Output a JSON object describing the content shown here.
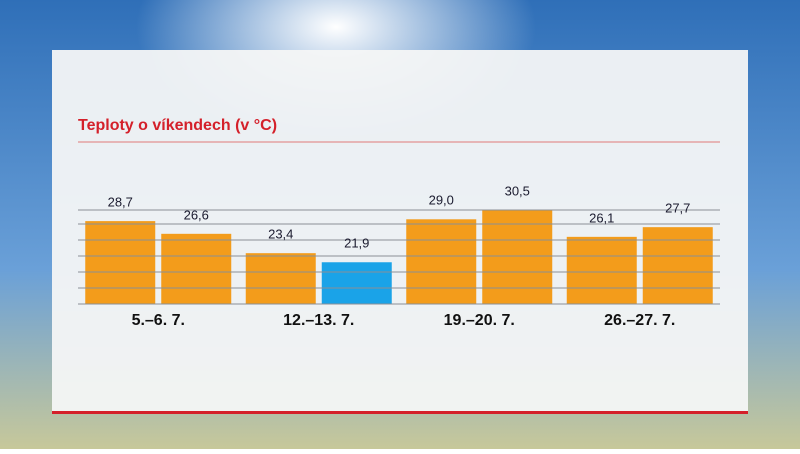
{
  "chart_data": {
    "type": "bar",
    "title": "Teploty o víkendech (v °C)",
    "categories": [
      "5.–6. 7.",
      "12.–13. 7.",
      "19.–20. 7.",
      "26.–27. 7."
    ],
    "series": [
      {
        "values": [
          28.7,
          23.4,
          29.0,
          26.1
        ],
        "value_labels": [
          "28,7",
          "23,4",
          "29,0",
          "26,1"
        ],
        "colors": [
          "#f39c1b",
          "#f39c1b",
          "#f39c1b",
          "#f39c1b"
        ]
      },
      {
        "values": [
          26.6,
          21.9,
          30.5,
          27.7
        ],
        "value_labels": [
          "26,6",
          "21,9",
          "30,5",
          "27,7"
        ],
        "colors": [
          "#f39c1b",
          "#1aa3e8",
          "#f39c1b",
          "#f39c1b"
        ]
      }
    ],
    "ylim": [
      15,
      31
    ]
  }
}
